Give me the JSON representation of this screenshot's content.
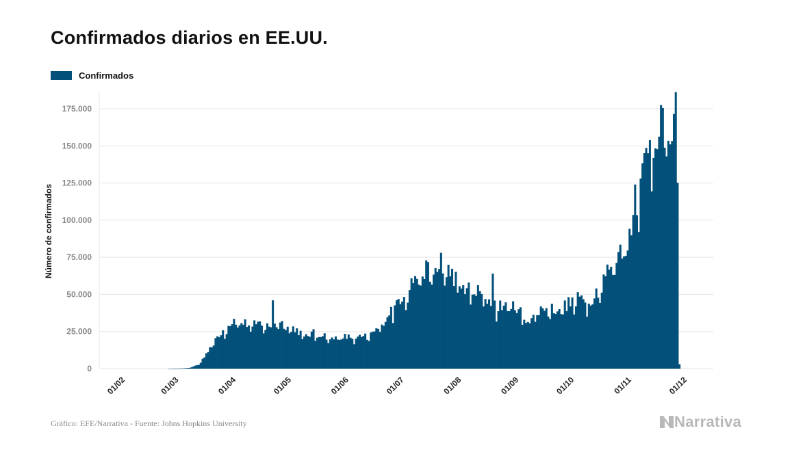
{
  "title": "Confirmados diarios en EE.UU.",
  "source": "Gráfico: EFE/Narrativa - Fuente: Johns Hopkins University",
  "brand": "Narrativa",
  "colors": {
    "bar": "#03507a",
    "grid": "#e6e6e6",
    "tick": "#888888",
    "brand": "#b8b8b8"
  },
  "chart_data": {
    "type": "bar",
    "title": "Confirmados diarios en EE.UU.",
    "ylabel": "Número de confirmados",
    "xlabel": "",
    "legend": {
      "entries": [
        "Confirmados"
      ],
      "position": "top-left"
    },
    "grid": true,
    "ylim": [
      0,
      175000
    ],
    "yticks": [
      0,
      25000,
      50000,
      75000,
      100000,
      125000,
      150000,
      175000
    ],
    "ytick_labels": [
      "0",
      "25.000",
      "50.000",
      "75.000",
      "100.000",
      "125.000",
      "150.000",
      "175.000"
    ],
    "xticks": [
      "01/02",
      "01/03",
      "01/04",
      "01/05",
      "01/06",
      "01/07",
      "01/08",
      "01/09",
      "01/10",
      "01/11",
      "01/12"
    ],
    "x_start": "2020-01-22",
    "x_end": "2020-11-30",
    "series": [
      {
        "name": "Confirmados",
        "knots": [
          [
            "2020-01-22",
            0
          ],
          [
            "2020-02-27",
            0
          ],
          [
            "2020-03-05",
            100
          ],
          [
            "2020-03-10",
            500
          ],
          [
            "2020-03-15",
            3000
          ],
          [
            "2020-03-20",
            12000
          ],
          [
            "2020-03-25",
            22000
          ],
          [
            "2020-03-30",
            28000
          ],
          [
            "2020-04-03",
            33000
          ],
          [
            "2020-04-08",
            31000
          ],
          [
            "2020-04-13",
            29000
          ],
          [
            "2020-04-18",
            31000
          ],
          [
            "2020-04-22",
            28000
          ],
          [
            "2020-04-26",
            33000
          ],
          [
            "2020-05-01",
            29000
          ],
          [
            "2020-05-06",
            27000
          ],
          [
            "2020-05-11",
            22000
          ],
          [
            "2020-05-16",
            24000
          ],
          [
            "2020-05-21",
            23000
          ],
          [
            "2020-05-26",
            20000
          ],
          [
            "2020-05-31",
            22000
          ],
          [
            "2020-06-05",
            21000
          ],
          [
            "2020-06-10",
            21000
          ],
          [
            "2020-06-15",
            22000
          ],
          [
            "2020-06-20",
            27000
          ],
          [
            "2020-06-25",
            36000
          ],
          [
            "2020-06-30",
            45000
          ],
          [
            "2020-07-05",
            52000
          ],
          [
            "2020-07-10",
            62000
          ],
          [
            "2020-07-15",
            66000
          ],
          [
            "2020-07-20",
            65000
          ],
          [
            "2020-07-25",
            68000
          ],
          [
            "2020-07-30",
            64000
          ],
          [
            "2020-08-04",
            55000
          ],
          [
            "2020-08-09",
            53000
          ],
          [
            "2020-08-14",
            51000
          ],
          [
            "2020-08-19",
            46000
          ],
          [
            "2020-08-24",
            42000
          ],
          [
            "2020-08-29",
            43000
          ],
          [
            "2020-09-03",
            42000
          ],
          [
            "2020-09-08",
            32000
          ],
          [
            "2020-09-13",
            37000
          ],
          [
            "2020-09-18",
            42000
          ],
          [
            "2020-09-23",
            40000
          ],
          [
            "2020-09-28",
            42000
          ],
          [
            "2020-10-03",
            45000
          ],
          [
            "2020-10-08",
            48000
          ],
          [
            "2020-10-13",
            47000
          ],
          [
            "2020-10-18",
            55000
          ],
          [
            "2020-10-23",
            68000
          ],
          [
            "2020-10-28",
            78000
          ],
          [
            "2020-11-02",
            88000
          ],
          [
            "2020-11-07",
            115000
          ],
          [
            "2020-11-12",
            142000
          ],
          [
            "2020-11-16",
            160000
          ],
          [
            "2020-11-20",
            168000
          ],
          [
            "2020-11-24",
            160000
          ],
          [
            "2020-11-26",
            145000
          ],
          [
            "2020-11-28",
            168000
          ],
          [
            "2020-11-29",
            170000
          ],
          [
            "2020-11-30",
            3000
          ]
        ],
        "peaks": [
          [
            "2020-04-24",
            46000
          ],
          [
            "2020-07-24",
            78000
          ],
          [
            "2020-08-21",
            64000
          ],
          [
            "2020-11-06",
            124000
          ],
          [
            "2020-11-09",
            128000
          ],
          [
            "2020-11-13",
            145000
          ],
          [
            "2020-11-20",
            177500
          ]
        ]
      }
    ]
  }
}
